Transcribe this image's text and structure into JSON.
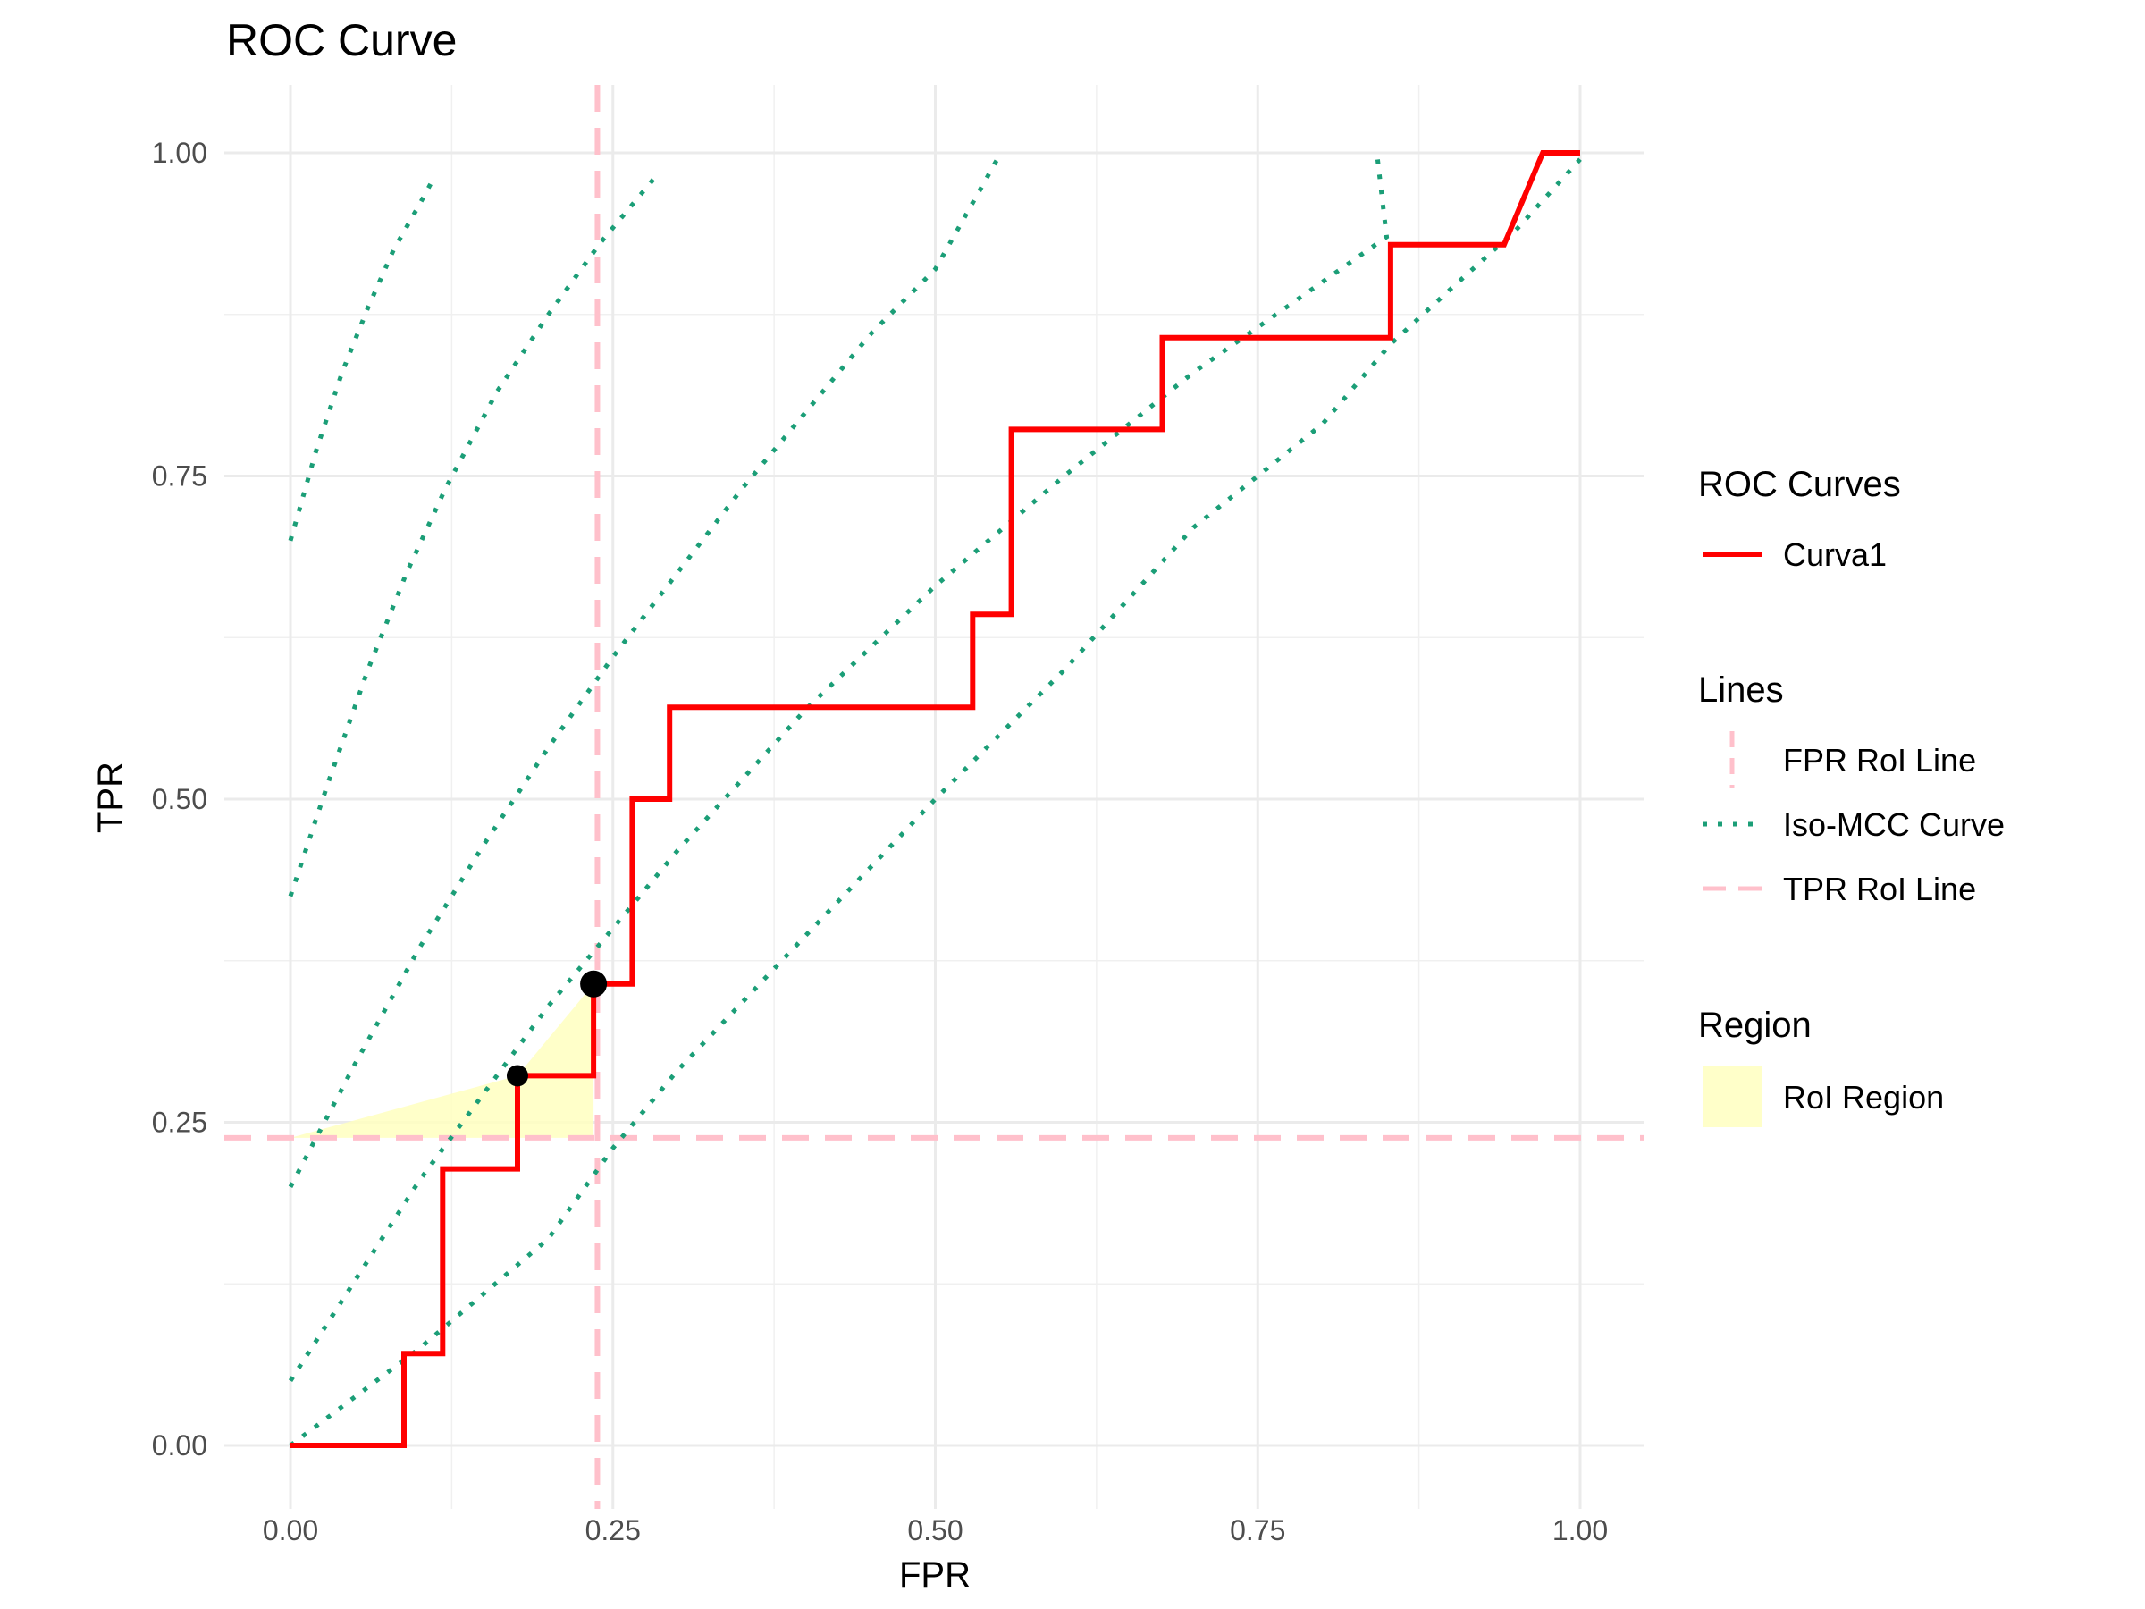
{
  "chart_data": {
    "type": "line",
    "title": "ROC Curve",
    "xlabel": "FPR",
    "ylabel": "TPR",
    "xlim": [
      -0.1,
      1.1
    ],
    "ylim": [
      -0.09,
      1.1
    ],
    "x_ticks": [
      0.0,
      0.25,
      0.5,
      0.75,
      1.0
    ],
    "x_tick_labels": [
      "0.00",
      "0.25",
      "0.50",
      "0.75",
      "1.00"
    ],
    "y_ticks": [
      0.0,
      0.25,
      0.5,
      0.75,
      1.0
    ],
    "y_tick_labels": [
      "0.00",
      "0.25",
      "0.50",
      "0.75",
      "1.00"
    ],
    "grid": true,
    "legend_placement": "right",
    "roc_curve": {
      "name": "Curva1",
      "color": "#ff0000",
      "points": [
        [
          0.0,
          0.0
        ],
        [
          0.088,
          0.0
        ],
        [
          0.088,
          0.071
        ],
        [
          0.118,
          0.071
        ],
        [
          0.118,
          0.214
        ],
        [
          0.176,
          0.214
        ],
        [
          0.176,
          0.286
        ],
        [
          0.235,
          0.286
        ],
        [
          0.235,
          0.357
        ],
        [
          0.265,
          0.357
        ],
        [
          0.265,
          0.5
        ],
        [
          0.294,
          0.5
        ],
        [
          0.294,
          0.571
        ],
        [
          0.529,
          0.571
        ],
        [
          0.529,
          0.643
        ],
        [
          0.559,
          0.643
        ],
        [
          0.559,
          0.786
        ],
        [
          0.676,
          0.786
        ],
        [
          0.676,
          0.857
        ],
        [
          0.853,
          0.857
        ],
        [
          0.853,
          0.929
        ],
        [
          0.941,
          0.929
        ],
        [
          0.971,
          1.0
        ],
        [
          1.0,
          1.0
        ]
      ]
    },
    "roi_points": [
      {
        "x": 0.176,
        "y": 0.286,
        "size": "small"
      },
      {
        "x": 0.235,
        "y": 0.357,
        "size": "large"
      }
    ],
    "roi_region": {
      "name": "RoI Region",
      "color": "#ffffc0",
      "polygon": [
        [
          0.0,
          0.238
        ],
        [
          0.176,
          0.286
        ],
        [
          0.235,
          0.357
        ],
        [
          0.235,
          0.238
        ]
      ]
    },
    "fpr_roi_line": {
      "name": "FPR RoI Line",
      "x": 0.238,
      "color": "#ffc0cb"
    },
    "tpr_roi_line": {
      "name": "TPR RoI Line",
      "y": 0.238,
      "color": "#ffc0cb"
    },
    "iso_mcc_curves": {
      "name": "Iso-MCC Curve",
      "color": "#1b9e77",
      "series": [
        {
          "points": [
            [
              0.0,
              0.7
            ],
            [
              0.02,
              0.77
            ],
            [
              0.04,
              0.83
            ],
            [
              0.06,
              0.88
            ],
            [
              0.08,
              0.925
            ],
            [
              0.1,
              0.96
            ],
            [
              0.112,
              0.982
            ]
          ]
        },
        {
          "points": [
            [
              0.0,
              0.425
            ],
            [
              0.03,
              0.515
            ],
            [
              0.06,
              0.6
            ],
            [
              0.09,
              0.675
            ],
            [
              0.12,
              0.74
            ],
            [
              0.16,
              0.815
            ],
            [
              0.2,
              0.875
            ],
            [
              0.24,
              0.93
            ],
            [
              0.286,
              0.985
            ]
          ]
        },
        {
          "points": [
            [
              0.0,
              0.2
            ],
            [
              0.05,
              0.295
            ],
            [
              0.1,
              0.385
            ],
            [
              0.15,
              0.465
            ],
            [
              0.2,
              0.54
            ],
            [
              0.25,
              0.61
            ],
            [
              0.3,
              0.675
            ],
            [
              0.35,
              0.74
            ],
            [
              0.4,
              0.8
            ],
            [
              0.45,
              0.86
            ],
            [
              0.5,
              0.91
            ],
            [
              0.548,
              0.995
            ]
          ]
        },
        {
          "points": [
            [
              0.0,
              0.05
            ],
            [
              0.1,
              0.205
            ],
            [
              0.2,
              0.34
            ],
            [
              0.3,
              0.46
            ],
            [
              0.4,
              0.57
            ],
            [
              0.5,
              0.665
            ],
            [
              0.6,
              0.75
            ],
            [
              0.7,
              0.83
            ],
            [
              0.8,
              0.9
            ],
            [
              0.85,
              0.935
            ],
            [
              0.843,
              0.995
            ]
          ]
        },
        {
          "points": [
            [
              0.0,
              0.0
            ],
            [
              0.1,
              0.075
            ],
            [
              0.2,
              0.16
            ],
            [
              0.25,
              0.23
            ],
            [
              0.3,
              0.29
            ],
            [
              0.4,
              0.395
            ],
            [
              0.5,
              0.5
            ],
            [
              0.6,
              0.6
            ],
            [
              0.7,
              0.71
            ],
            [
              0.8,
              0.79
            ],
            [
              0.853,
              0.852
            ],
            [
              0.9,
              0.895
            ],
            [
              0.95,
              0.94
            ],
            [
              1.0,
              0.995
            ]
          ]
        }
      ]
    },
    "legend": {
      "groups": [
        {
          "title": "ROC Curves",
          "entries": [
            {
              "label": "Curva1",
              "key": "solid-red"
            }
          ]
        },
        {
          "title": "Lines",
          "entries": [
            {
              "label": "FPR RoI Line",
              "key": "vertical-dashed-pink"
            },
            {
              "label": "Iso-MCC Curve",
              "key": "dotted-green"
            },
            {
              "label": "TPR RoI Line",
              "key": "horizontal-dashed-pink"
            }
          ]
        },
        {
          "title": "Region",
          "entries": [
            {
              "label": "RoI Region",
              "key": "fill-yellow"
            }
          ]
        }
      ]
    }
  }
}
